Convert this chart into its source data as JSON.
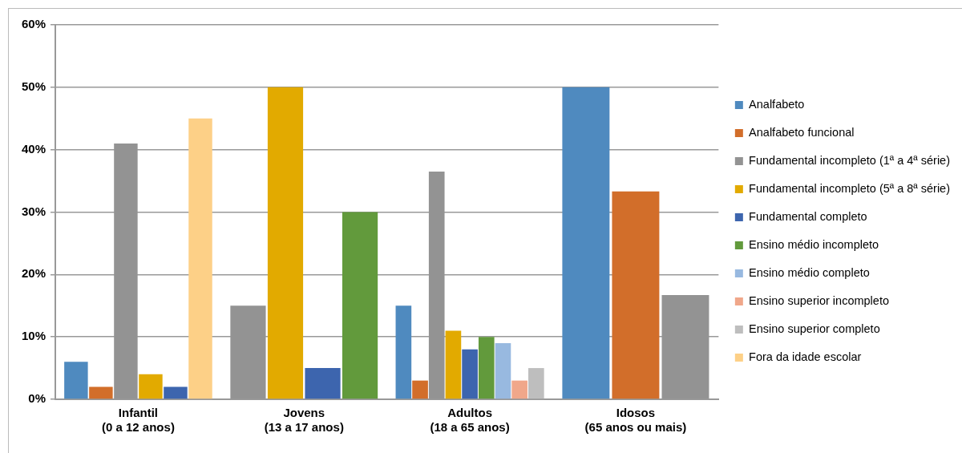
{
  "chart_data": {
    "type": "bar",
    "categories": [
      "Infantil\n(0 a 12 anos)",
      "Jovens\n(13 a 17 anos)",
      "Adultos\n(18 a 65 anos)",
      "Idosos\n(65 anos ou mais)"
    ],
    "series": [
      {
        "name": "Analfabeto",
        "color": "#4f8abf",
        "values": [
          6,
          null,
          15,
          50
        ]
      },
      {
        "name": "Analfabeto funcional",
        "color": "#d26e2a",
        "values": [
          2,
          null,
          3,
          33.3
        ]
      },
      {
        "name": "Fundamental incompleto (1ª a 4ª série)",
        "color": "#939393",
        "values": [
          41,
          15,
          36.5,
          16.7
        ]
      },
      {
        "name": "Fundamental incompleto (5ª a 8ª série)",
        "color": "#e2aa00",
        "values": [
          4,
          50,
          11,
          null
        ]
      },
      {
        "name": "Fundamental completo",
        "color": "#3d65ae",
        "values": [
          2,
          5,
          8,
          null
        ]
      },
      {
        "name": "Ensino médio incompleto",
        "color": "#629a3c",
        "values": [
          null,
          30,
          10,
          null
        ]
      },
      {
        "name": "Ensino médio completo",
        "color": "#98b9e0",
        "values": [
          null,
          null,
          9,
          null
        ]
      },
      {
        "name": "Ensino superior incompleto",
        "color": "#f0a78a",
        "values": [
          null,
          null,
          3,
          null
        ]
      },
      {
        "name": "Ensino superior completo",
        "color": "#bebebe",
        "values": [
          null,
          null,
          5,
          null
        ]
      },
      {
        "name": "Fora da idade escolar",
        "color": "#fdd087",
        "values": [
          45,
          null,
          null,
          null
        ]
      }
    ],
    "ylim": [
      0,
      60
    ],
    "yticks": [
      {
        "value": 0,
        "label": "0%"
      },
      {
        "value": 10,
        "label": "10%"
      },
      {
        "value": 20,
        "label": "20%"
      },
      {
        "value": 30,
        "label": "30%"
      },
      {
        "value": 40,
        "label": "40%"
      },
      {
        "value": 50,
        "label": "50%"
      },
      {
        "value": 60,
        "label": "60%"
      }
    ],
    "grid": "y",
    "legend": "right"
  }
}
